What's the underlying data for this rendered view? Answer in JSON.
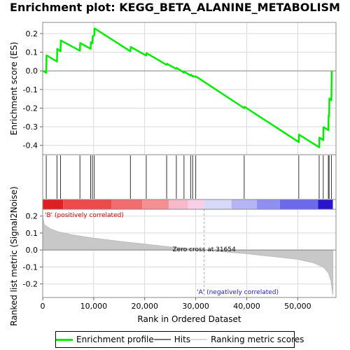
{
  "chart_data": {
    "title": "Enrichment plot: KEGG_BETA_ALANINE_METABOLISM",
    "type": "line",
    "xlabel": "Rank in Ordered Dataset",
    "xlim": [
      0,
      57500
    ],
    "x_ticks": [
      "0",
      "10,000",
      "20,000",
      "30,000",
      "40,000",
      "50,000"
    ],
    "x_tick_values": [
      0,
      10000,
      20000,
      30000,
      40000,
      50000
    ],
    "top_panel": {
      "ylabel": "Enrichment score (ES)",
      "ylim": [
        -0.45,
        0.26
      ],
      "y_ticks": [
        "0.2",
        "0.1",
        "0.0",
        "-0.1",
        "-0.2",
        "-0.3",
        "-0.4"
      ],
      "y_tick_values": [
        0.2,
        0.1,
        0.0,
        -0.1,
        -0.2,
        -0.3,
        -0.4
      ],
      "series_name": "Enrichment profile",
      "color": "#00ee00",
      "points": [
        [
          0,
          0.0
        ],
        [
          700,
          -0.01
        ],
        [
          760,
          0.083
        ],
        [
          2800,
          0.05
        ],
        [
          2860,
          0.118
        ],
        [
          3500,
          0.105
        ],
        [
          3560,
          0.163
        ],
        [
          7300,
          0.108
        ],
        [
          7360,
          0.149
        ],
        [
          9400,
          0.118
        ],
        [
          9460,
          0.154
        ],
        [
          9750,
          0.148
        ],
        [
          9810,
          0.186
        ],
        [
          10100,
          0.19
        ],
        [
          10160,
          0.228
        ],
        [
          17200,
          0.105
        ],
        [
          17260,
          0.128
        ],
        [
          20300,
          0.082
        ],
        [
          20360,
          0.095
        ],
        [
          24300,
          0.032
        ],
        [
          24360,
          0.038
        ],
        [
          26200,
          0.01
        ],
        [
          26260,
          0.016
        ],
        [
          27700,
          -0.01
        ],
        [
          27760,
          -0.005
        ],
        [
          29000,
          -0.025
        ],
        [
          29060,
          -0.02
        ],
        [
          29400,
          -0.03
        ],
        [
          29460,
          -0.027
        ],
        [
          30000,
          -0.033
        ],
        [
          30060,
          -0.03
        ],
        [
          39500,
          -0.2
        ],
        [
          39560,
          -0.193
        ],
        [
          50200,
          -0.382
        ],
        [
          50260,
          -0.342
        ],
        [
          54200,
          -0.41
        ],
        [
          54260,
          -0.358
        ],
        [
          55000,
          -0.372
        ],
        [
          55060,
          -0.302
        ],
        [
          56000,
          -0.318
        ],
        [
          56060,
          -0.24
        ],
        [
          56150,
          -0.243
        ],
        [
          56210,
          -0.148
        ],
        [
          56600,
          -0.158
        ],
        [
          56660,
          0.0
        ]
      ]
    },
    "hits": {
      "name": "Hits",
      "positions": [
        700,
        2800,
        3500,
        7300,
        9400,
        9750,
        10100,
        17200,
        20300,
        24300,
        26200,
        27700,
        29000,
        29400,
        30000,
        39500,
        50200,
        54200,
        55000,
        56000,
        56150,
        56600
      ]
    },
    "ranking_bar": {
      "segments": [
        {
          "start": 0,
          "end": 4000,
          "color": "#e02020"
        },
        {
          "start": 4000,
          "end": 13500,
          "color": "#ee4a4a"
        },
        {
          "start": 13500,
          "end": 19500,
          "color": "#f26e6e"
        },
        {
          "start": 19500,
          "end": 24700,
          "color": "#f59090"
        },
        {
          "start": 24700,
          "end": 28500,
          "color": "#f8baca"
        },
        {
          "start": 28500,
          "end": 31654,
          "color": "#f8cfe6"
        },
        {
          "start": 31654,
          "end": 37000,
          "color": "#d8d8f8"
        },
        {
          "start": 37000,
          "end": 42000,
          "color": "#b4b4f6"
        },
        {
          "start": 42000,
          "end": 46500,
          "color": "#8f8ff2"
        },
        {
          "start": 46500,
          "end": 54000,
          "color": "#6a6aea"
        },
        {
          "start": 54000,
          "end": 56900,
          "color": "#2a14cc"
        }
      ]
    },
    "bottom_panel": {
      "ylabel": "Ranked list metric (Signal2Noise)",
      "ylim": [
        -0.28,
        0.24
      ],
      "y_ticks": [
        "0.2",
        "0.1",
        "0.0",
        "-0.1",
        "-0.2"
      ],
      "y_tick_values": [
        0.2,
        0.1,
        0.0,
        -0.1,
        -0.2
      ],
      "series_name": "Ranking metric scores",
      "profile": [
        [
          0,
          0.2
        ],
        [
          300,
          0.15
        ],
        [
          1500,
          0.125
        ],
        [
          3000,
          0.108
        ],
        [
          6000,
          0.088
        ],
        [
          10000,
          0.07
        ],
        [
          15000,
          0.052
        ],
        [
          20000,
          0.035
        ],
        [
          25000,
          0.018
        ],
        [
          31654,
          0.0
        ],
        [
          36000,
          -0.012
        ],
        [
          40000,
          -0.022
        ],
        [
          45000,
          -0.038
        ],
        [
          50000,
          -0.055
        ],
        [
          53000,
          -0.075
        ],
        [
          55000,
          -0.1
        ],
        [
          56000,
          -0.135
        ],
        [
          56500,
          -0.18
        ],
        [
          56800,
          -0.25
        ],
        [
          56900,
          -0.265
        ]
      ]
    },
    "annotations": {
      "positive_label": "'B' (positively correlated)",
      "negative_label": "'A' (negatively correlated)",
      "zero_cross_label": "Zero cross at 31654",
      "zero_cross_value": 31654
    },
    "legend": [
      {
        "label": "Enrichment profile",
        "color": "#00ee00"
      },
      {
        "label": "Hits",
        "color": "#777777"
      },
      {
        "label": "Ranking metric scores",
        "color": "#d8d8d8"
      }
    ]
  }
}
